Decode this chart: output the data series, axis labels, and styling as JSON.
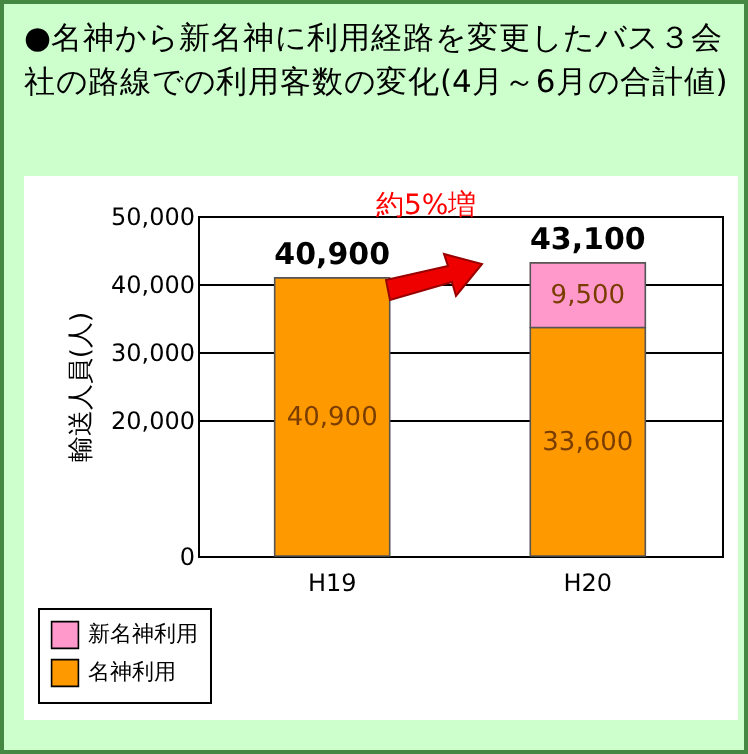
{
  "chart_data": {
    "type": "bar",
    "title": "●名神から新名神に利用経路を変更したバス３会社の路線での利用客数の変化(4月～6月の合計値)",
    "ylabel": "輸送人員(人)",
    "categories": [
      "H19",
      "H20"
    ],
    "series": [
      {
        "name": "名神利用",
        "color": "#ff9900",
        "values": [
          40900,
          33600
        ],
        "value_labels": [
          "40,900",
          "33,600"
        ]
      },
      {
        "name": "新名神利用",
        "color": "#ff99cc",
        "values": [
          null,
          9500
        ],
        "value_labels": [
          null,
          "9,500"
        ]
      }
    ],
    "stacked": true,
    "totals": [
      "40,900",
      "43,100"
    ],
    "annotations": [
      "約5%増"
    ],
    "ylim": [
      0,
      50000
    ],
    "yticks": [
      0,
      {
        "value": 20000,
        "label": "20,000"
      },
      {
        "value": 30000,
        "label": "30,000"
      },
      {
        "value": 40000,
        "label": "40,000"
      },
      {
        "value": 50000,
        "label": "50,000"
      }
    ],
    "grid": "y",
    "legend": "bottom left"
  }
}
